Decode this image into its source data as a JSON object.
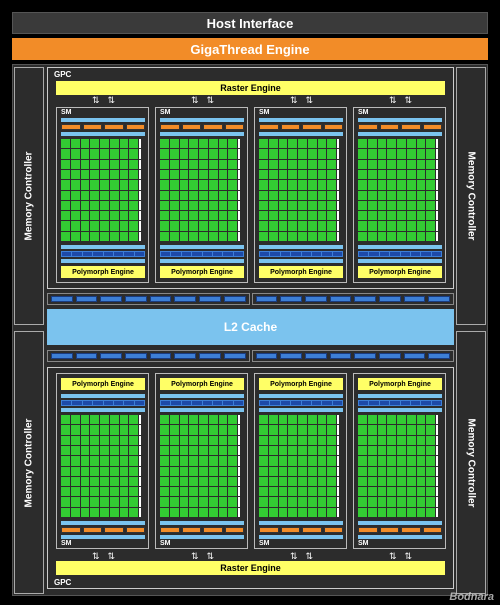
{
  "host_interface": "Host Interface",
  "gigathread_engine": "GigaThread Engine",
  "memory_controller": "Memory Controller",
  "l2_cache": "L2 Cache",
  "gpc_label": "GPC",
  "raster_engine": "Raster Engine",
  "sm_label": "SM",
  "polymorph_engine": "Polymorph Engine",
  "watermark": "Bodnara",
  "colors": {
    "cuda_core": "#33cc33",
    "gigathread": "#f28c28",
    "l2_cache": "#7bc3ee",
    "polymorph_raster": "#ffff66",
    "load_store_blue": "#3d7fd6"
  }
}
